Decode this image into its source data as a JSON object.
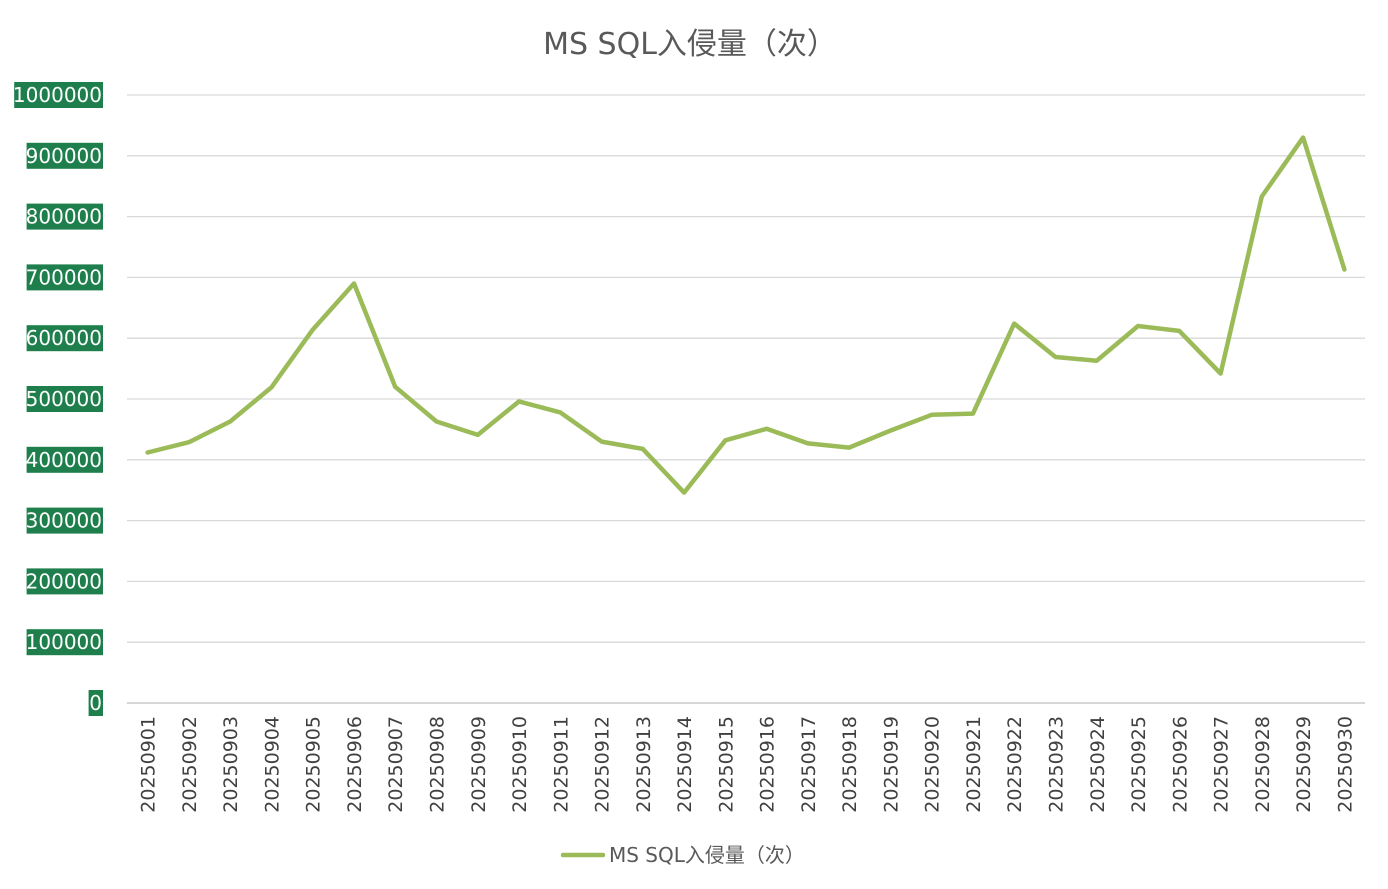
{
  "chart_data": {
    "type": "line",
    "title": "MS SQL入侵量（次）",
    "xlabel": "",
    "ylabel": "",
    "ylim": [
      0,
      1000000
    ],
    "yticks": [
      0,
      100000,
      200000,
      300000,
      400000,
      500000,
      600000,
      700000,
      800000,
      900000,
      1000000
    ],
    "grid": true,
    "legend": "bottom",
    "categories": [
      "20250901",
      "20250902",
      "20250903",
      "20250904",
      "20250905",
      "20250906",
      "20250907",
      "20250908",
      "20250909",
      "20250910",
      "20250911",
      "20250912",
      "20250913",
      "20250914",
      "20250915",
      "20250916",
      "20250917",
      "20250918",
      "20250919",
      "20250920",
      "20250921",
      "20250922",
      "20250923",
      "20250924",
      "20250925",
      "20250926",
      "20250927",
      "20250928",
      "20250929",
      "20250930"
    ],
    "series": [
      {
        "name": "MS SQL入侵量（次）",
        "color": "#9bbb59",
        "values": [
          412000,
          429000,
          463000,
          519000,
          614000,
          690000,
          520000,
          463000,
          441000,
          496000,
          478000,
          430000,
          418000,
          346000,
          432000,
          451000,
          427000,
          420000,
          448000,
          474000,
          476000,
          624000,
          569000,
          563000,
          620000,
          612000,
          542000,
          833000,
          930000,
          713000
        ]
      }
    ],
    "colors": {
      "tick_label_background": "#1e7f4d",
      "series": "#9bbb59"
    }
  }
}
